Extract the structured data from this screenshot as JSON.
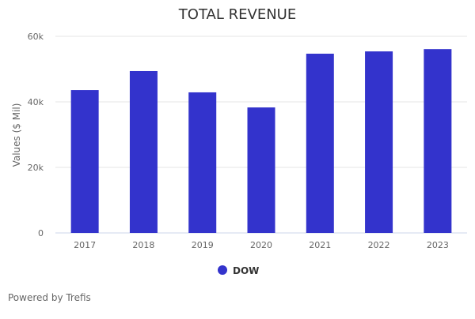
{
  "chart_data": {
    "type": "bar",
    "title": "TOTAL REVENUE",
    "xlabel": "",
    "ylabel": "Values ($ Mil)",
    "ylim": [
      0,
      60000
    ],
    "yticks": [
      0,
      20000,
      40000,
      60000
    ],
    "ytick_labels": [
      "0",
      "20k",
      "40k",
      "60k"
    ],
    "categories": [
      "2017",
      "2018",
      "2019",
      "2020",
      "2021",
      "2022",
      "2023"
    ],
    "series": [
      {
        "name": "DOW",
        "color": "#3333cc",
        "values": [
          43600,
          49400,
          42900,
          38300,
          54700,
          55400,
          56100
        ]
      }
    ],
    "grid": true,
    "legend": "bottom-center"
  },
  "credit": "Powered by Trefis"
}
